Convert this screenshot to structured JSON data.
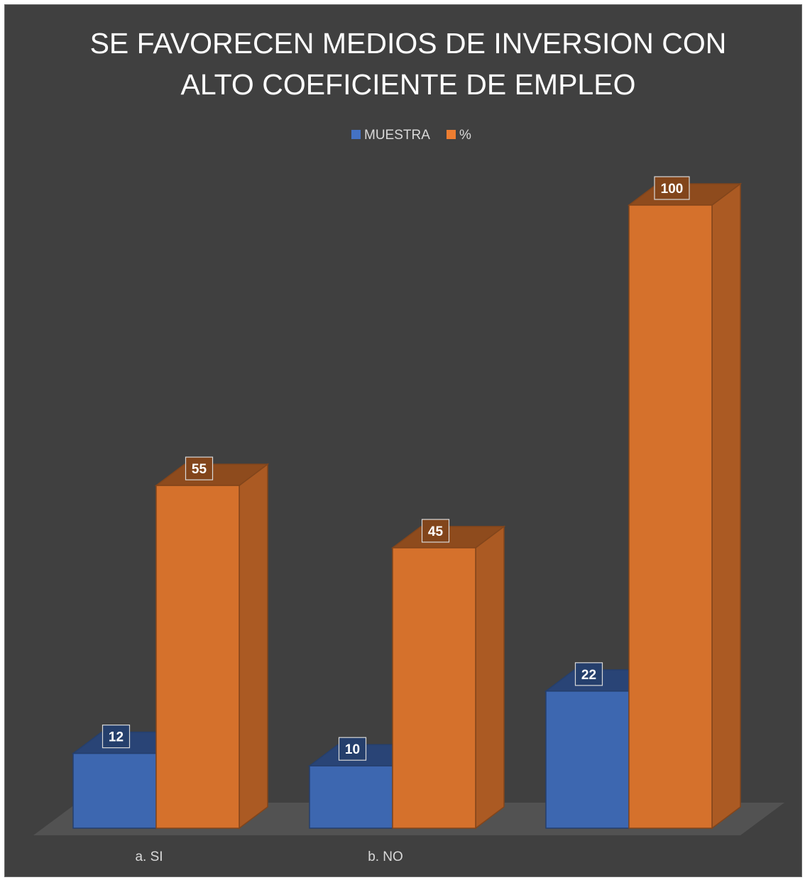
{
  "chart_data": {
    "type": "bar",
    "title_lines": [
      "SE FAVORECEN MEDIOS DE INVERSION CON",
      "ALTO COEFICIENTE DE EMPLEO"
    ],
    "categories": [
      "a. SI",
      "b. NO",
      ""
    ],
    "series": [
      {
        "name": "MUESTRA",
        "color": "#4472c4",
        "values": [
          12,
          10,
          22
        ]
      },
      {
        "name": "%",
        "color": "#ed7d31",
        "values": [
          55,
          45,
          100
        ]
      }
    ],
    "ylim": [
      0,
      100
    ],
    "grid": false,
    "legend_position": "top",
    "data_labels": true,
    "style": "3d-clustered-column"
  }
}
